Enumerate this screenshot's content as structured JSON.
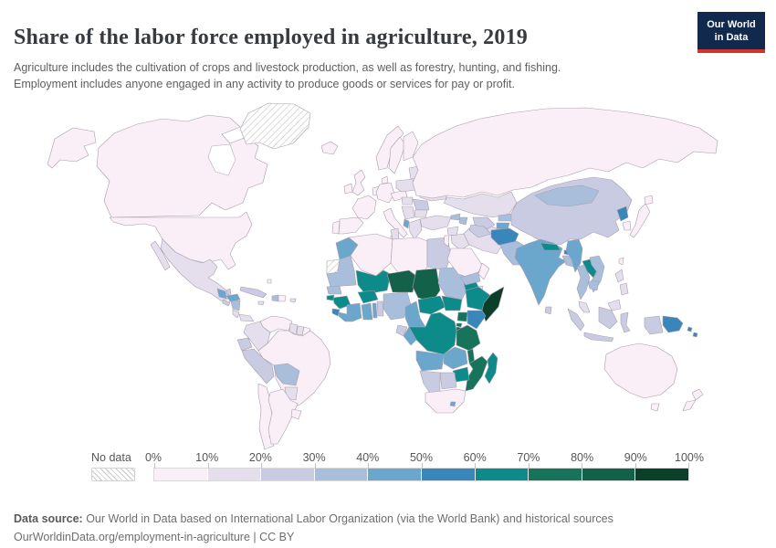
{
  "header": {
    "title": "Share of the labor force employed in agriculture, 2019",
    "subtitle": "Agriculture includes the cultivation of crops and livestock production, as well as forestry, hunting, and fishing.\nEmployment includes anyone engaged in any activity to produce goods or services for pay or profit.",
    "logo": {
      "line1": "Our World",
      "line2": "in Data"
    }
  },
  "legend": {
    "no_data_label": "No data",
    "tick_labels": [
      "0%",
      "10%",
      "20%",
      "30%",
      "40%",
      "50%",
      "60%",
      "70%",
      "80%",
      "90%",
      "100%"
    ]
  },
  "footer": {
    "source_label": "Data source:",
    "source_text": " Our World in Data based on International Labor Organization (via the World Bank) and historical sources",
    "note": "OurWorldinData.org/employment-in-agriculture | CC BY"
  },
  "chart_data": {
    "type": "choropleth",
    "title": "Share of the labor force employed in agriculture, 2019",
    "year": 2019,
    "unit": "% of labor force employed in agriculture",
    "legend_position": "bottom",
    "bin_labels": [
      "0-10%",
      "10-20%",
      "20-30%",
      "30-40%",
      "40-50%",
      "50-60%",
      "60-70%",
      "70-80%",
      "80-90%",
      "90-100%"
    ],
    "bin_colors": [
      "#faeff6",
      "#e5dfed",
      "#c9cbe2",
      "#a9bedb",
      "#6ba6cd",
      "#3987ba",
      "#0d8a8a",
      "#17745a",
      "#14614a",
      "#0b3f2a"
    ],
    "no_data_regions": [
      "greenland",
      "western-sahara"
    ],
    "regions": {
      "canada": 0,
      "united-states": 0,
      "greenland": null,
      "iceland": 0,
      "mexico": 1,
      "belize": 2,
      "guatemala": 4,
      "honduras": 4,
      "el-salvador": 2,
      "nicaragua": 3,
      "costa-rica": 1,
      "panama": 1,
      "cuba": 2,
      "jamaica": 1,
      "haiti": 3,
      "dominican-republic": 0,
      "puerto-rico": 1,
      "bahamas": 0,
      "venezuela": 0,
      "colombia": 1,
      "guyana": 1,
      "suriname": 1,
      "french-guiana": 0,
      "ecuador": 2,
      "peru": 2,
      "brazil": 0,
      "bolivia": 3,
      "paraguay": 1,
      "chile": 0,
      "argentina": 0,
      "uruguay": 0,
      "ireland": 0,
      "united-kingdom": 0,
      "norway": 0,
      "sweden": 0,
      "finland": 0,
      "denmark": 0,
      "portugal": 0,
      "spain": 0,
      "france": 0,
      "benelux": 0,
      "germany": 0,
      "austria-czechia": 0,
      "italy": 0,
      "poland": 1,
      "baltics": 1,
      "belarus": 1,
      "ukraine": 1,
      "romania": 2,
      "hungary": 1,
      "balkans": 1,
      "bulgaria": 1,
      "greece": 1,
      "albania": 4,
      "morocco": 4,
      "western-sahara": null,
      "algeria": 0,
      "tunisia": 1,
      "libya": 0,
      "egypt": 2,
      "mauritania": 3,
      "mali": 6,
      "niger": 8,
      "chad": 8,
      "sudan": 3,
      "eritrea": 6,
      "ethiopia": 6,
      "djibouti": 1,
      "somalia": 9,
      "senegal": 3,
      "guinea-bissau": 6,
      "guinea": 6,
      "sierra-leone": 5,
      "liberia": 4,
      "cote-divoire": 4,
      "burkina-faso": 6,
      "ghana": 4,
      "togo": 4,
      "benin": 2,
      "nigeria": 3,
      "cameroon": 4,
      "central-african-republic": 6,
      "south-sudan": 6,
      "uganda": 7,
      "kenya": 5,
      "rwanda": 7,
      "burundi": 8,
      "dr-congo": 6,
      "congo": 4,
      "gabon": 2,
      "tanzania": 7,
      "angola": 4,
      "zambia": 4,
      "malawi": 7,
      "mozambique": 7,
      "zimbabwe": 6,
      "botswana": 2,
      "namibia": 2,
      "south-africa": 0,
      "lesotho": 4,
      "madagascar": 6,
      "turkey": 1,
      "syria": 1,
      "iraq": 1,
      "israel-jordan": 0,
      "saudi-arabia": 0,
      "yemen": 3,
      "oman": 0,
      "iran": 1,
      "georgia": 3,
      "azerbaijan": 3,
      "russia": 0,
      "kazakhstan": 1,
      "uzbekistan": 2,
      "turkmenistan": 2,
      "kyrgyzstan": 3,
      "tajikistan": 4,
      "afghanistan": 5,
      "pakistan": 3,
      "india": 4,
      "nepal": 6,
      "bhutan": 5,
      "bangladesh": 3,
      "sri-lanka": 2,
      "china": 2,
      "mongolia": 3,
      "north-korea": 5,
      "south-korea": 0,
      "japan": 0,
      "myanmar": 4,
      "laos": 6,
      "thailand": 3,
      "vietnam": 3,
      "cambodia": 3,
      "malaysia": 1,
      "indonesia": 2,
      "philippines": 1,
      "taiwan": 0,
      "papua-new-guinea": 5,
      "solomon-islands": 5,
      "australia": 0,
      "new-zealand": 0
    }
  }
}
